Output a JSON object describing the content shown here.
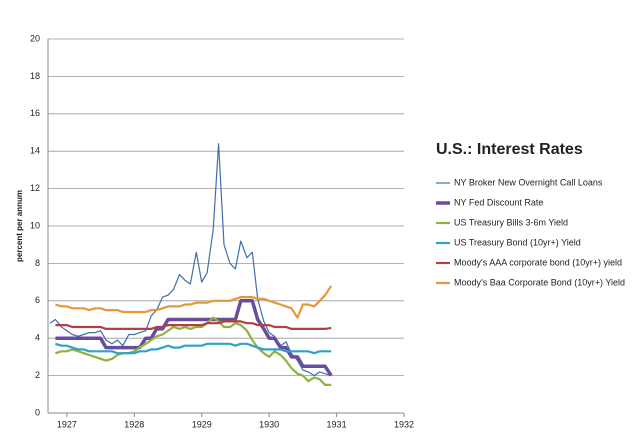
{
  "chart_data": {
    "type": "line",
    "title": "U.S.: Interest Rates",
    "y_label": "percent per annum",
    "x": [
      1926.75,
      1926.83,
      1926.92,
      1927,
      1927.08,
      1927.17,
      1927.25,
      1927.33,
      1927.42,
      1927.5,
      1927.58,
      1927.67,
      1927.75,
      1927.83,
      1927.92,
      1928,
      1928.08,
      1928.17,
      1928.25,
      1928.33,
      1928.42,
      1928.5,
      1928.58,
      1928.67,
      1928.75,
      1928.83,
      1928.92,
      1929,
      1929.08,
      1929.17,
      1929.25,
      1929.33,
      1929.42,
      1929.5,
      1929.58,
      1929.67,
      1929.75,
      1929.83,
      1929.92,
      1930,
      1930.08,
      1930.17,
      1930.25,
      1930.33,
      1930.42,
      1930.5,
      1930.58,
      1930.67,
      1930.75,
      1930.83,
      1930.92
    ],
    "xlim": [
      1926.72,
      1932
    ],
    "xticks": [
      1927,
      1928,
      1929,
      1930,
      1931,
      1932
    ],
    "ylim": [
      0,
      20
    ],
    "yticks": [
      0,
      2,
      4,
      6,
      8,
      10,
      12,
      14,
      16,
      18,
      20
    ],
    "grid": true,
    "series": [
      {
        "name": "NY Broker New Overnight Call Loans",
        "color": "#3f6fa8",
        "width": 1.2,
        "values": [
          4.8,
          5.0,
          4.6,
          4.4,
          4.2,
          4.1,
          4.2,
          4.3,
          4.3,
          4.4,
          3.9,
          3.7,
          3.9,
          3.6,
          4.2,
          4.2,
          4.3,
          4.4,
          5.2,
          5.5,
          6.2,
          6.3,
          6.6,
          7.4,
          7.1,
          6.9,
          8.6,
          7.0,
          7.5,
          9.8,
          14.4,
          9.0,
          8.0,
          7.7,
          9.2,
          8.3,
          8.6,
          6.1,
          4.9,
          4.3,
          4.1,
          3.6,
          3.8,
          3.2,
          2.8,
          2.3,
          2.2,
          2.0,
          2.2,
          2.1,
          2.0
        ]
      },
      {
        "name": "NY Fed Discount Rate",
        "color": "#6a4c9c",
        "width": 3.5,
        "values": [
          null,
          4,
          4,
          4,
          4,
          4,
          4,
          4,
          4,
          4,
          3.5,
          3.5,
          3.5,
          3.5,
          3.5,
          3.5,
          3.5,
          4,
          4,
          4.5,
          4.5,
          5,
          5,
          5,
          5,
          5,
          5,
          5,
          5,
          5,
          5,
          5,
          5,
          5,
          6,
          6,
          6,
          5,
          4.5,
          4,
          4,
          3.5,
          3.5,
          3,
          3,
          2.5,
          2.5,
          2.5,
          2.5,
          2.5,
          2
        ]
      },
      {
        "name": "US Treasury Bills 3-6m Yield",
        "color": "#8db33f",
        "width": 2.2,
        "values": [
          null,
          3.2,
          3.3,
          3.3,
          3.4,
          3.3,
          3.2,
          3.1,
          3.0,
          2.9,
          2.8,
          2.9,
          3.1,
          3.2,
          3.2,
          3.3,
          3.5,
          3.7,
          3.9,
          4.1,
          4.2,
          4.4,
          4.6,
          4.5,
          4.6,
          4.5,
          4.6,
          4.6,
          4.8,
          5.1,
          4.9,
          4.6,
          4.6,
          4.8,
          4.7,
          4.4,
          3.9,
          3.5,
          3.2,
          3.0,
          3.3,
          3.1,
          2.8,
          2.4,
          2.1,
          2.0,
          1.7,
          1.9,
          1.8,
          1.5,
          1.5
        ]
      },
      {
        "name": "US Treasury Bond (10yr+) Yield",
        "color": "#31a1c4",
        "width": 2.2,
        "values": [
          null,
          3.7,
          3.6,
          3.6,
          3.5,
          3.4,
          3.4,
          3.3,
          3.3,
          3.3,
          3.3,
          3.3,
          3.2,
          3.2,
          3.2,
          3.2,
          3.3,
          3.3,
          3.4,
          3.4,
          3.5,
          3.6,
          3.5,
          3.5,
          3.6,
          3.6,
          3.6,
          3.6,
          3.7,
          3.7,
          3.7,
          3.7,
          3.7,
          3.6,
          3.7,
          3.7,
          3.6,
          3.5,
          3.4,
          3.4,
          3.4,
          3.4,
          3.3,
          3.3,
          3.3,
          3.3,
          3.3,
          3.2,
          3.3,
          3.3,
          3.3
        ]
      },
      {
        "name": "Moody's AAA corporate bond (10yr+) yield",
        "color": "#b0413e",
        "width": 2.2,
        "values": [
          null,
          4.7,
          4.7,
          4.7,
          4.6,
          4.6,
          4.6,
          4.6,
          4.6,
          4.6,
          4.5,
          4.5,
          4.5,
          4.5,
          4.5,
          4.5,
          4.5,
          4.5,
          4.5,
          4.6,
          4.6,
          4.7,
          4.7,
          4.7,
          4.7,
          4.7,
          4.7,
          4.7,
          4.8,
          4.8,
          4.8,
          4.9,
          4.9,
          4.9,
          4.9,
          4.8,
          4.8,
          4.7,
          4.7,
          4.7,
          4.6,
          4.6,
          4.6,
          4.5,
          4.5,
          4.5,
          4.5,
          4.5,
          4.5,
          4.5,
          4.55
        ]
      },
      {
        "name": "Moody's Baa Corporate Bond (10yr+) Yield",
        "color": "#e8963c",
        "width": 2.2,
        "values": [
          null,
          5.8,
          5.7,
          5.7,
          5.6,
          5.6,
          5.6,
          5.5,
          5.6,
          5.6,
          5.5,
          5.5,
          5.5,
          5.4,
          5.4,
          5.4,
          5.4,
          5.4,
          5.5,
          5.5,
          5.6,
          5.7,
          5.7,
          5.7,
          5.8,
          5.8,
          5.9,
          5.9,
          5.9,
          6.0,
          6.0,
          6.0,
          6.0,
          6.1,
          6.2,
          6.2,
          6.2,
          6.1,
          6.1,
          6.0,
          5.9,
          5.8,
          5.7,
          5.6,
          5.1,
          5.8,
          5.8,
          5.7,
          6.0,
          6.3,
          6.8
        ]
      }
    ]
  }
}
